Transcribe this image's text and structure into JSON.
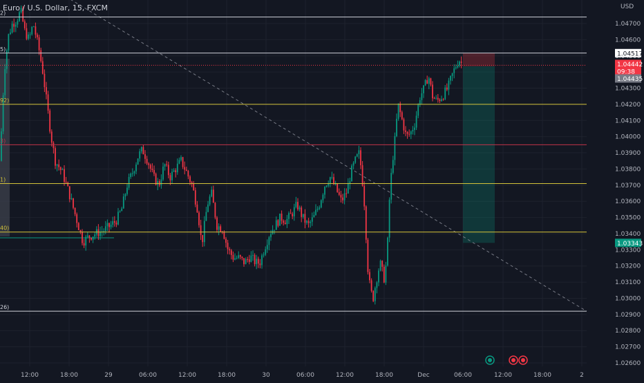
{
  "header": {
    "title": "Euro / U.S. Dollar, 15, FXCM",
    "currency": "USD"
  },
  "chart_data": {
    "type": "candlestick",
    "ylim": [
      1.0252,
      1.0482
    ],
    "y_ticks": [
      "1.04700",
      "1.04600",
      "1.04500",
      "1.04400",
      "1.04300",
      "1.04200",
      "1.04100",
      "1.04000",
      "1.03900",
      "1.03800",
      "1.03700",
      "1.03600",
      "1.03500",
      "1.03400",
      "1.03300",
      "1.03200",
      "1.03100",
      "1.03000",
      "1.02900",
      "1.02800",
      "1.02700",
      "1.02600"
    ],
    "x_ticks": [
      "12:00",
      "18:00",
      "29",
      "06:00",
      "12:00",
      "18:00",
      "30",
      "06:00",
      "12:00",
      "18:00",
      "Dec",
      "06:00",
      "12:00",
      "18:00",
      "2"
    ],
    "horizontal_levels": [
      {
        "price": 1.0474,
        "color": "#d1d4dc",
        "label": "2)"
      },
      {
        "price": 1.04517,
        "color": "#d1d4dc",
        "label": "5)"
      },
      {
        "price": 1.042,
        "color": "#d4c33a",
        "label": "92)"
      },
      {
        "price": 1.0395,
        "color": "#c2334a",
        "label": "3)"
      },
      {
        "price": 1.0371,
        "color": "#d4c33a",
        "label": "1)"
      },
      {
        "price": 1.0341,
        "color": "#d4c33a",
        "label": "40)"
      },
      {
        "price": 1.0292,
        "color": "#d1d4dc",
        "label": "26)"
      }
    ],
    "trendline": {
      "from": [
        1.0479,
        1.0292
      ],
      "style": "dashed"
    },
    "position": {
      "entry": 1.04435,
      "stop": 1.04517,
      "target": 1.03343
    },
    "badges": [
      {
        "text": "1.04517",
        "price": 1.04517,
        "bg": "#ffffff",
        "fg": "#131722"
      },
      {
        "text": "1.04442",
        "price": 1.0445,
        "bg": "#f23645",
        "fg": "#ffffff"
      },
      {
        "text": "09:38",
        "price": 1.04405,
        "bg": "#f23645",
        "fg": "#ffffff"
      },
      {
        "text": "1.04435",
        "price": 1.0436,
        "bg": "#787b86",
        "fg": "#ffffff"
      },
      {
        "text": "1.03343",
        "price": 1.03343,
        "bg": "#089981",
        "fg": "#ffffff"
      }
    ],
    "colors": {
      "up": "#089981",
      "down": "#f23645",
      "grid": "#1e222d",
      "bg": "#131722"
    },
    "path_keys": [
      [
        0,
        1.0385
      ],
      [
        6,
        1.044
      ],
      [
        12,
        1.0462
      ],
      [
        18,
        1.047
      ],
      [
        24,
        1.0472
      ],
      [
        30,
        1.0478
      ],
      [
        36,
        1.0465
      ],
      [
        42,
        1.046
      ],
      [
        48,
        1.047
      ],
      [
        56,
        1.0455
      ],
      [
        62,
        1.044
      ],
      [
        68,
        1.042
      ],
      [
        74,
        1.04
      ],
      [
        80,
        1.0385
      ],
      [
        90,
        1.0378
      ],
      [
        100,
        1.0365
      ],
      [
        110,
        1.035
      ],
      [
        120,
        1.0335
      ],
      [
        128,
        1.0338
      ],
      [
        138,
        1.034
      ],
      [
        150,
        1.0342
      ],
      [
        160,
        1.0345
      ],
      [
        168,
        1.0348
      ],
      [
        176,
        1.0355
      ],
      [
        184,
        1.037
      ],
      [
        192,
        1.0378
      ],
      [
        200,
        1.0388
      ],
      [
        206,
        1.0392
      ],
      [
        214,
        1.0385
      ],
      [
        222,
        1.0375
      ],
      [
        230,
        1.037
      ],
      [
        238,
        1.0383
      ],
      [
        246,
        1.0375
      ],
      [
        254,
        1.038
      ],
      [
        262,
        1.0385
      ],
      [
        270,
        1.0378
      ],
      [
        278,
        1.037
      ],
      [
        286,
        1.0355
      ],
      [
        292,
        1.0333
      ],
      [
        300,
        1.0358
      ],
      [
        306,
        1.0365
      ],
      [
        314,
        1.0345
      ],
      [
        322,
        1.0343
      ],
      [
        330,
        1.033
      ],
      [
        338,
        1.0325
      ],
      [
        346,
        1.0325
      ],
      [
        354,
        1.0322
      ],
      [
        362,
        1.0326
      ],
      [
        370,
        1.0322
      ],
      [
        376,
        1.0322
      ],
      [
        382,
        1.033
      ],
      [
        390,
        1.034
      ],
      [
        398,
        1.0345
      ],
      [
        406,
        1.035
      ],
      [
        414,
        1.0348
      ],
      [
        422,
        1.0352
      ],
      [
        430,
        1.0358
      ],
      [
        438,
        1.035
      ],
      [
        446,
        1.0345
      ],
      [
        454,
        1.035
      ],
      [
        462,
        1.0358
      ],
      [
        470,
        1.037
      ],
      [
        478,
        1.0375
      ],
      [
        486,
        1.0368
      ],
      [
        494,
        1.036
      ],
      [
        502,
        1.0366
      ],
      [
        508,
        1.0378
      ],
      [
        514,
        1.0385
      ],
      [
        520,
        1.039
      ],
      [
        524,
        1.0375
      ],
      [
        528,
        1.0355
      ],
      [
        532,
        1.032
      ],
      [
        536,
        1.0305
      ],
      [
        540,
        1.03
      ],
      [
        544,
        1.031
      ],
      [
        550,
        1.0322
      ],
      [
        556,
        1.0312
      ],
      [
        560,
        1.0325
      ],
      [
        564,
        1.0365
      ],
      [
        568,
        1.0385
      ],
      [
        572,
        1.04
      ],
      [
        576,
        1.042
      ],
      [
        582,
        1.041
      ],
      [
        588,
        1.04
      ],
      [
        594,
        1.0402
      ],
      [
        600,
        1.0408
      ],
      [
        608,
        1.0425
      ],
      [
        614,
        1.043
      ],
      [
        620,
        1.0438
      ],
      [
        626,
        1.0425
      ],
      [
        632,
        1.0422
      ],
      [
        640,
        1.0425
      ],
      [
        648,
        1.043
      ],
      [
        656,
        1.044
      ],
      [
        664,
        1.0448
      ],
      [
        670,
        1.0444
      ]
    ]
  }
}
